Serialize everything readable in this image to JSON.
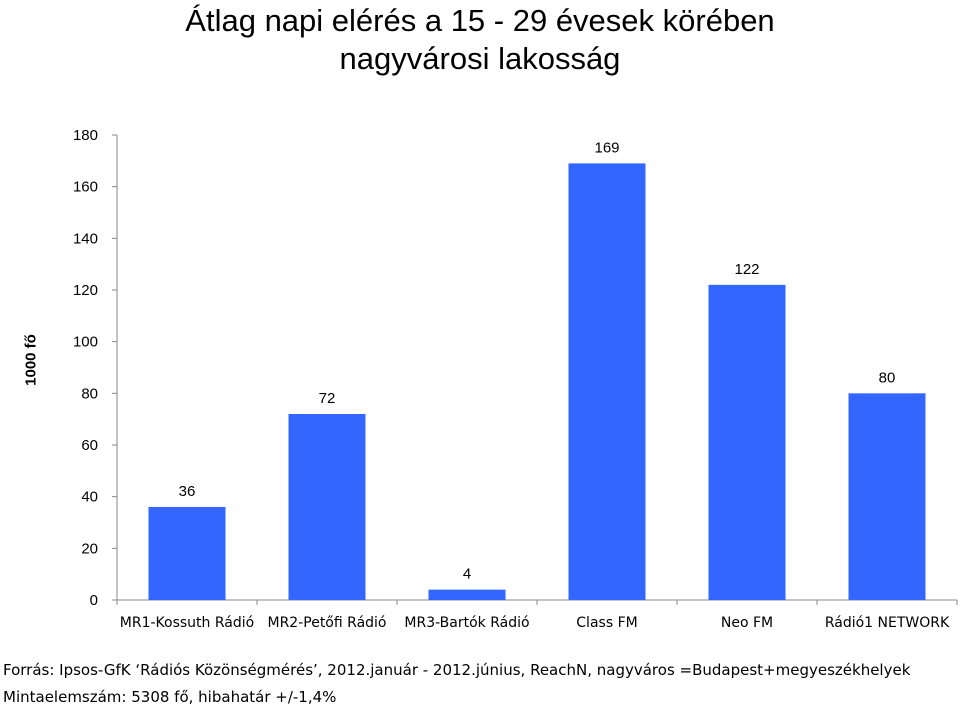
{
  "chart_data": {
    "type": "bar",
    "title": "Átlag napi elérés a 15 - 29 évesek körében",
    "subtitle": "nagyvárosi lakosság",
    "ylabel": "1000 fő",
    "xlabel": "",
    "categories": [
      "MR1-Kossuth Rádió",
      "MR2-Petőfi Rádió",
      "MR3-Bartók Rádió",
      "Class FM",
      "Neo FM",
      "Rádió1 NETWORK"
    ],
    "values": [
      36,
      72,
      4,
      169,
      122,
      80
    ],
    "data_labels": [
      "36",
      "72",
      "4",
      "169",
      "122",
      "80"
    ],
    "ylim": [
      0,
      180
    ],
    "yticks": [
      0,
      20,
      40,
      60,
      80,
      100,
      120,
      140,
      160,
      180
    ],
    "grid": false,
    "legend": "none",
    "bar_color": "#3366ff"
  },
  "footer": {
    "source": "Forrás: Ipsos-GfK ‘Rádiós Közönségmérés’, 2012.január - 2012.június, ReachN,  nagyváros =Budapest+megyeszékhelyek",
    "sample": "Mintaelemszám: 5308 fő, hibahatár +/-1,4%"
  }
}
